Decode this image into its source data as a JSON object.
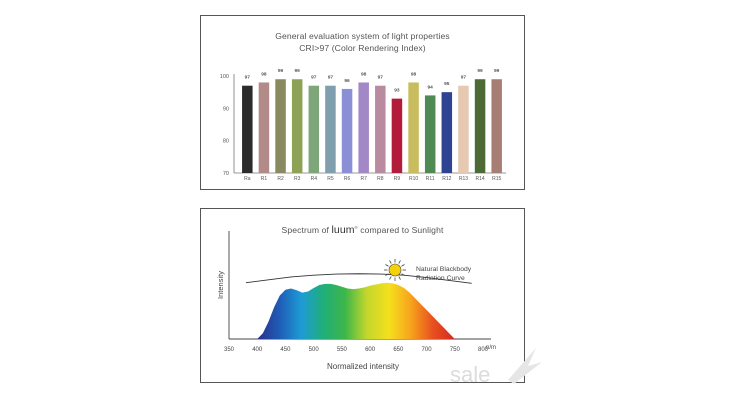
{
  "chart_data": [
    {
      "type": "bar",
      "title": "General evaluation system of light properties",
      "subtitle": "CRI>97 (Color Rendering Index)",
      "categories": [
        "Ra",
        "R1",
        "R2",
        "R3",
        "R4",
        "R5",
        "R6",
        "R7",
        "R8",
        "R9",
        "R10",
        "R11",
        "R12",
        "R13",
        "R14",
        "R15"
      ],
      "values": [
        97,
        98,
        99,
        99,
        97,
        97,
        96,
        98,
        97,
        93,
        98,
        94,
        95,
        97,
        99,
        99
      ],
      "colors": [
        "#2b2b2b",
        "#b28a88",
        "#8a8a61",
        "#8da256",
        "#7ea67a",
        "#7f9fae",
        "#8a8fd6",
        "#a288c6",
        "#b98aa0",
        "#b31b3a",
        "#c8bd5e",
        "#4f8a55",
        "#2e4391",
        "#e7c9b2",
        "#4d6a36",
        "#a67e74"
      ],
      "ylim": [
        70,
        100
      ],
      "yticks": [
        70,
        80,
        90,
        100
      ],
      "xlabel": "",
      "ylabel": "",
      "grid": false
    },
    {
      "type": "area",
      "title_prefix": "Spectrum of",
      "brand": "luum",
      "title_suffix": "compared to Sunlight",
      "xlabel": "Normalized intensity",
      "ylabel": "Intensity",
      "x_unit": "n/m",
      "xticks": [
        350,
        400,
        450,
        500,
        550,
        600,
        650,
        700,
        750,
        800
      ],
      "xlim": [
        350,
        800
      ],
      "series": [
        {
          "x": [
            400,
            410,
            420,
            430,
            440,
            450,
            460,
            470,
            480,
            490,
            500,
            510,
            520,
            530,
            540,
            550,
            560,
            570,
            580,
            590,
            600,
            610,
            620,
            630,
            640,
            650,
            660,
            670,
            680,
            690,
            700,
            710,
            720,
            730,
            740,
            750
          ],
          "values": [
            0,
            0.1,
            0.3,
            0.55,
            0.75,
            0.85,
            0.87,
            0.84,
            0.8,
            0.82,
            0.88,
            0.93,
            0.95,
            0.95,
            0.93,
            0.9,
            0.87,
            0.86,
            0.87,
            0.89,
            0.92,
            0.94,
            0.96,
            0.97,
            0.96,
            0.93,
            0.88,
            0.8,
            0.7,
            0.6,
            0.5,
            0.4,
            0.3,
            0.2,
            0.1,
            0
          ]
        }
      ],
      "reference_curve": {
        "name": "Natural Blackbody Radiation Curve",
        "x": [
          380,
          420,
          460,
          500,
          540,
          580,
          620,
          660,
          700,
          740,
          780
        ],
        "values": [
          0.97,
          1.02,
          1.07,
          1.1,
          1.12,
          1.125,
          1.12,
          1.1,
          1.06,
          1.01,
          0.96
        ]
      },
      "annotation": [
        "Natural Blackbody",
        "Radiation Curve"
      ],
      "icon": "sun-icon",
      "gradient_colors": [
        "#2a2f8c",
        "#1f5bb5",
        "#1e9bd6",
        "#1fae7a",
        "#3db64a",
        "#c3d72d",
        "#f4e01d",
        "#f7a31c",
        "#e8501f",
        "#d42a1f"
      ]
    }
  ],
  "watermark": "sale"
}
